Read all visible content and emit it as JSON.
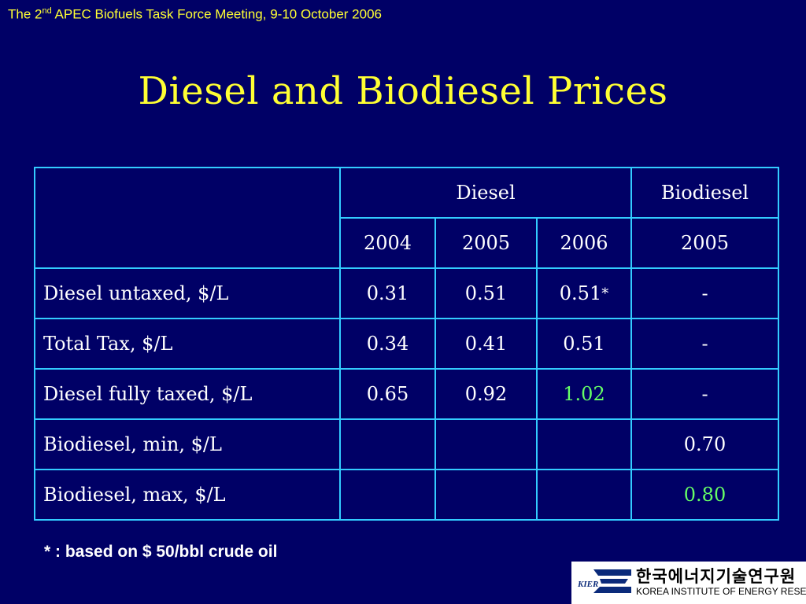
{
  "header": {
    "prefix": "The 2",
    "sup": "nd",
    "rest": " APEC Biofuels Task Force Meeting, 9-10 October 2006"
  },
  "title": "Diesel and Biodiesel Prices",
  "table": {
    "group_headers": [
      "Diesel",
      "Biodiesel"
    ],
    "years": [
      "2004",
      "2005",
      "2006",
      "2005"
    ],
    "rows": [
      {
        "label": "Diesel untaxed, $/L",
        "d2004": "0.31",
        "d2005": "0.51",
        "d2006": "0.51",
        "d2006_mark": "*",
        "b2005": "-"
      },
      {
        "label": "Total Tax, $/L",
        "d2004": "0.34",
        "d2005": "0.41",
        "d2006": "0.51",
        "b2005": "-"
      },
      {
        "label": "Diesel fully taxed, $/L",
        "d2004": "0.65",
        "d2005": "0.92",
        "d2006": "1.02",
        "b2005": "-"
      },
      {
        "label": "Biodiesel, min, $/L",
        "d2004": "",
        "d2005": "",
        "d2006": "",
        "b2005": "0.70"
      },
      {
        "label": "Biodiesel, max, $/L",
        "d2004": "",
        "d2005": "",
        "d2006": "",
        "b2005": "0.80"
      }
    ]
  },
  "footnote": "* : based on $ 50/bbl crude oil",
  "logo": {
    "abbr": "KIER",
    "korean": "한국에너지기술연구원",
    "english": "KOREA INSTITUTE OF ENERGY RESEARCH"
  },
  "colors": {
    "background": "#000066",
    "title": "#ffff33",
    "border": "#33ccff",
    "highlight": "#66ff66"
  }
}
